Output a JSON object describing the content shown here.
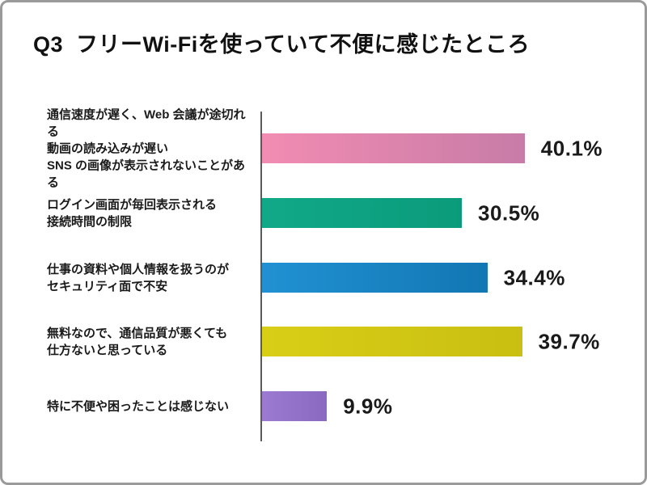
{
  "page": {
    "title": "Q3  フリーWi-Fiを使っていて不便に感じたところ",
    "background": "#ffffff",
    "border_color": "#9a9a9a",
    "text_color": "#1a1a1a"
  },
  "chart_data": {
    "type": "bar",
    "orientation": "horizontal",
    "title": "Q3 フリーWi-Fiを使っていて不便に感じたところ",
    "categories": [
      [
        "通信速度が遅く、Web 会議が途切れる",
        "動画の読み込みが遅い",
        "SNS の画像が表示されないことがある"
      ],
      [
        "ログイン画面が毎回表示される",
        "接続時間の制限"
      ],
      [
        "仕事の資料や個人情報を扱うのが",
        "セキュリティ面で不安"
      ],
      [
        "無料なので、通信品質が悪くても",
        "仕方ないと思っている"
      ],
      [
        "特に不便や困ったことは感じない"
      ]
    ],
    "values": [
      40.1,
      30.5,
      34.4,
      39.7,
      9.9
    ],
    "value_labels": [
      "40.1%",
      "30.5%",
      "34.4%",
      "39.7%",
      "9.9%"
    ],
    "bar_colors": [
      {
        "start": "#F28CB2",
        "end": "#C77CA7"
      },
      {
        "start": "#10A988",
        "end": "#0B9B7B"
      },
      {
        "start": "#2191D3",
        "end": "#1277B3"
      },
      {
        "start": "#D9CE16",
        "end": "#C9BF12"
      },
      {
        "start": "#9C7AD1",
        "end": "#8A6AC1"
      }
    ],
    "xlabel": "",
    "ylabel": "",
    "xlim": [
      0,
      45
    ],
    "grid": false,
    "legend": false,
    "axis_line_color": "#5a5a5a",
    "value_label_unit": "%"
  }
}
